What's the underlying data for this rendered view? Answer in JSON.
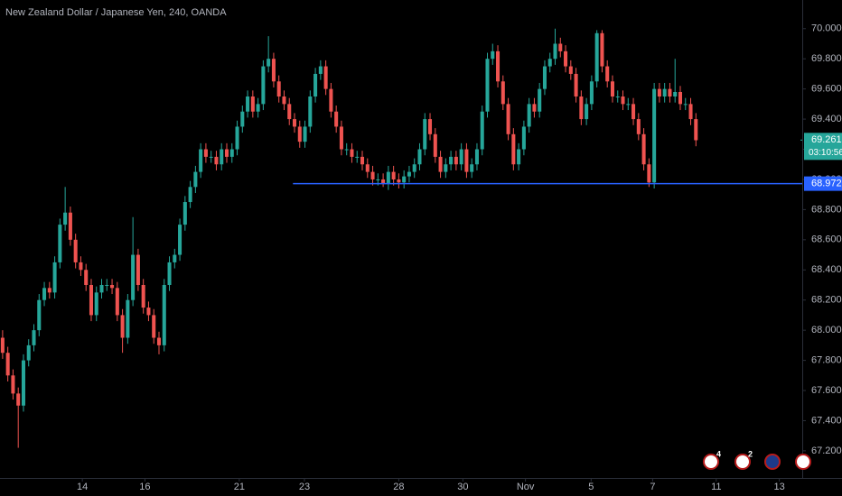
{
  "chart_data": {
    "type": "candlestick",
    "title": "New Zealand Dollar / Japanese Yen, 240, OANDA",
    "up_color": "#26a69a",
    "down_color": "#ef5350",
    "grid": false,
    "ylim": [
      67.02,
      70.19
    ],
    "yticks": [
      {
        "value": 67.2,
        "label": "67.200"
      },
      {
        "value": 67.4,
        "label": "67.400"
      },
      {
        "value": 67.6,
        "label": "67.600"
      },
      {
        "value": 67.8,
        "label": "67.800"
      },
      {
        "value": 68.0,
        "label": "68.000"
      },
      {
        "value": 68.2,
        "label": "68.200"
      },
      {
        "value": 68.4,
        "label": "68.400"
      },
      {
        "value": 68.6,
        "label": "68.600"
      },
      {
        "value": 68.8,
        "label": "68.800"
      },
      {
        "value": 69.0,
        "label": "69.000"
      },
      {
        "value": 69.2,
        "label": "69.200"
      },
      {
        "value": 69.4,
        "label": "69.400"
      },
      {
        "value": 69.6,
        "label": "69.600"
      },
      {
        "value": 69.8,
        "label": "69.800"
      },
      {
        "value": 70.0,
        "label": "70.000"
      }
    ],
    "xlim": [
      -0.5,
      153.4
    ],
    "xticks": [
      {
        "value": 15.3,
        "label": "14"
      },
      {
        "value": 27.3,
        "label": "16"
      },
      {
        "value": 45.4,
        "label": "21"
      },
      {
        "value": 57.9,
        "label": "23"
      },
      {
        "value": 76,
        "label": "28"
      },
      {
        "value": 88.3,
        "label": "30"
      },
      {
        "value": 100.3,
        "label": "Nov"
      },
      {
        "value": 112.9,
        "label": "5"
      },
      {
        "value": 124.7,
        "label": "7"
      },
      {
        "value": 136.9,
        "label": "11"
      },
      {
        "value": 149,
        "label": "13"
      }
    ],
    "open": [
      67.95,
      67.85,
      67.7,
      67.58,
      67.5,
      67.8,
      67.9,
      68.0,
      68.2,
      68.28,
      68.25,
      68.45,
      68.7,
      68.78,
      68.6,
      68.45,
      68.4,
      68.3,
      68.1,
      68.25,
      68.3,
      68.3,
      68.28,
      68.1,
      67.95,
      68.2,
      68.5,
      68.3,
      68.15,
      68.1,
      67.95,
      67.9,
      68.3,
      68.45,
      68.5,
      68.7,
      68.85,
      68.95,
      69.05,
      69.2,
      69.15,
      69.15,
      69.1,
      69.2,
      69.15,
      69.2,
      69.35,
      69.45,
      69.55,
      69.45,
      69.5,
      69.75,
      69.8,
      69.65,
      69.55,
      69.5,
      69.4,
      69.35,
      69.25,
      69.35,
      69.55,
      69.7,
      69.75,
      69.6,
      69.45,
      69.35,
      69.2,
      69.2,
      69.15,
      69.15,
      69.1,
      69.05,
      69.0,
      69.0,
      68.97,
      69.05,
      69.0,
      68.98,
      69.02,
      69.05,
      69.1,
      69.2,
      69.4,
      69.3,
      69.15,
      69.05,
      69.1,
      69.15,
      69.1,
      69.2,
      69.05,
      69.1,
      69.2,
      69.45,
      69.8,
      69.85,
      69.65,
      69.5,
      69.3,
      69.1,
      69.2,
      69.35,
      69.5,
      69.45,
      69.6,
      69.75,
      69.8,
      69.9,
      69.85,
      69.75,
      69.7,
      69.55,
      69.4,
      69.5,
      69.65,
      69.97,
      69.75,
      69.65,
      69.55,
      69.55,
      69.5,
      69.5,
      69.4,
      69.3,
      69.1,
      68.98,
      69.6,
      69.55,
      69.6,
      69.55,
      69.58,
      69.5,
      69.5,
      69.4
    ],
    "high": [
      68.0,
      67.89,
      67.74,
      67.62,
      67.84,
      67.94,
      68.04,
      68.24,
      68.32,
      68.32,
      68.49,
      68.74,
      68.95,
      68.82,
      68.64,
      68.49,
      68.44,
      68.34,
      68.29,
      68.34,
      68.34,
      68.34,
      68.32,
      68.14,
      68.24,
      68.75,
      68.54,
      68.34,
      68.19,
      68.14,
      67.99,
      68.34,
      68.49,
      68.54,
      68.74,
      68.89,
      68.99,
      69.09,
      69.24,
      69.24,
      69.19,
      69.19,
      69.24,
      69.24,
      69.24,
      69.39,
      69.49,
      69.59,
      69.59,
      69.54,
      69.79,
      69.95,
      69.84,
      69.69,
      69.59,
      69.54,
      69.44,
      69.39,
      69.39,
      69.59,
      69.74,
      69.79,
      69.79,
      69.64,
      69.49,
      69.39,
      69.24,
      69.24,
      69.19,
      69.19,
      69.14,
      69.09,
      69.04,
      69.04,
      69.09,
      69.09,
      69.04,
      69.06,
      69.09,
      69.14,
      69.24,
      69.44,
      69.44,
      69.34,
      69.19,
      69.14,
      69.19,
      69.19,
      69.24,
      69.24,
      69.14,
      69.24,
      69.49,
      69.84,
      69.9,
      69.89,
      69.69,
      69.54,
      69.34,
      69.24,
      69.39,
      69.54,
      69.54,
      69.64,
      69.79,
      69.84,
      70.0,
      69.94,
      69.89,
      69.79,
      69.74,
      69.59,
      69.54,
      69.69,
      69.99,
      69.99,
      69.79,
      69.69,
      69.59,
      69.59,
      69.54,
      69.54,
      69.44,
      69.34,
      69.14,
      69.64,
      69.64,
      69.64,
      69.64,
      69.8,
      69.62,
      69.54,
      69.54,
      69.44
    ],
    "low": [
      67.81,
      67.66,
      67.54,
      67.22,
      67.46,
      67.76,
      67.86,
      67.96,
      68.16,
      68.21,
      68.21,
      68.41,
      68.66,
      68.56,
      68.41,
      68.36,
      68.26,
      68.06,
      68.06,
      68.21,
      68.26,
      68.24,
      68.06,
      67.85,
      67.91,
      68.16,
      68.26,
      68.11,
      68.06,
      67.91,
      67.84,
      67.86,
      68.26,
      68.41,
      68.46,
      68.66,
      68.81,
      68.91,
      69.01,
      69.11,
      69.11,
      69.06,
      69.06,
      69.11,
      69.11,
      69.16,
      69.31,
      69.41,
      69.41,
      69.41,
      69.46,
      69.71,
      69.61,
      69.51,
      69.46,
      69.36,
      69.31,
      69.21,
      69.21,
      69.31,
      69.51,
      69.66,
      69.56,
      69.41,
      69.31,
      69.16,
      69.16,
      69.11,
      69.11,
      69.06,
      69.01,
      68.96,
      68.96,
      68.95,
      68.93,
      68.96,
      68.94,
      68.94,
      68.98,
      69.01,
      69.06,
      69.16,
      69.26,
      69.11,
      69.01,
      69.01,
      69.06,
      69.06,
      69.06,
      69.01,
      69.01,
      69.06,
      69.16,
      69.41,
      69.76,
      69.61,
      69.46,
      69.26,
      69.06,
      69.06,
      69.16,
      69.31,
      69.41,
      69.41,
      69.56,
      69.71,
      69.76,
      69.81,
      69.71,
      69.66,
      69.51,
      69.36,
      69.36,
      69.46,
      69.61,
      69.71,
      69.61,
      69.51,
      69.51,
      69.46,
      69.46,
      69.36,
      69.26,
      69.06,
      68.95,
      68.94,
      69.51,
      69.51,
      69.51,
      69.51,
      69.46,
      69.46,
      69.36,
      69.22
    ],
    "close": [
      67.85,
      67.7,
      67.58,
      67.5,
      67.8,
      67.9,
      68.0,
      68.2,
      68.28,
      68.25,
      68.45,
      68.7,
      68.78,
      68.6,
      68.45,
      68.4,
      68.3,
      68.1,
      68.25,
      68.3,
      68.3,
      68.28,
      68.1,
      67.95,
      68.2,
      68.5,
      68.3,
      68.15,
      68.1,
      67.95,
      67.9,
      68.3,
      68.45,
      68.5,
      68.7,
      68.85,
      68.95,
      69.05,
      69.2,
      69.15,
      69.15,
      69.1,
      69.2,
      69.15,
      69.2,
      69.35,
      69.45,
      69.55,
      69.45,
      69.5,
      69.75,
      69.8,
      69.65,
      69.55,
      69.5,
      69.4,
      69.35,
      69.25,
      69.35,
      69.55,
      69.7,
      69.75,
      69.6,
      69.45,
      69.35,
      69.2,
      69.2,
      69.15,
      69.15,
      69.1,
      69.05,
      69.0,
      69.0,
      68.97,
      69.05,
      69.0,
      68.98,
      69.02,
      69.05,
      69.1,
      69.2,
      69.4,
      69.3,
      69.15,
      69.05,
      69.1,
      69.15,
      69.1,
      69.2,
      69.05,
      69.1,
      69.2,
      69.45,
      69.8,
      69.85,
      69.65,
      69.5,
      69.3,
      69.1,
      69.2,
      69.35,
      69.5,
      69.45,
      69.6,
      69.75,
      69.8,
      69.9,
      69.85,
      69.75,
      69.7,
      69.55,
      69.4,
      69.5,
      69.65,
      69.97,
      69.75,
      69.65,
      69.55,
      69.55,
      69.5,
      69.5,
      69.4,
      69.3,
      69.1,
      68.98,
      69.6,
      69.55,
      69.6,
      69.55,
      69.58,
      69.5,
      69.5,
      69.4,
      69.26
    ],
    "hline": {
      "value": 68.972,
      "label": "68.972",
      "color": "#2962ff",
      "start": 55.7
    },
    "last_price": {
      "value": 69.261,
      "label": "69.261",
      "countdown": "03:10:56",
      "color": "#26a69a"
    },
    "events": [
      "4",
      "2"
    ]
  }
}
